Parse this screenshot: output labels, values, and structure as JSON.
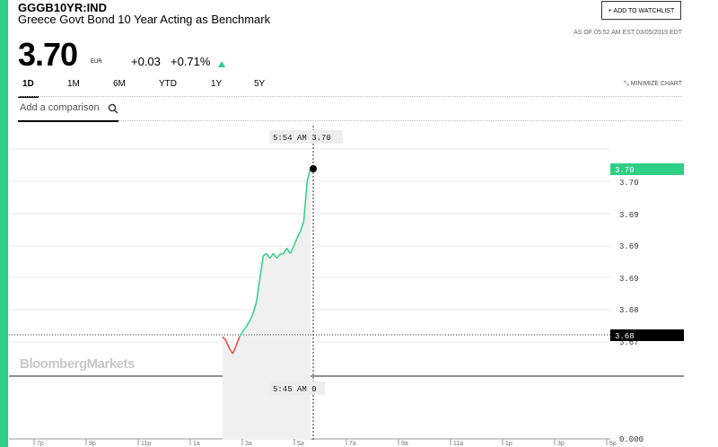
{
  "header": {
    "ticker": "GGGB10YR:IND",
    "name": "Greece Govt Bond 10 Year Acting as Benchmark",
    "watchlist_label": "+ ADD TO WATCHLIST",
    "as_of": "AS OF 05:52 AM EST 03/05/2019 EDT"
  },
  "quote": {
    "price": "3.70",
    "currency": "EUR",
    "change": "+0.03",
    "change_pct": "+0.71%",
    "direction": "up",
    "up_color": "#2fcf85"
  },
  "tabs": [
    "1D",
    "1M",
    "6M",
    "YTD",
    "1Y",
    "5Y"
  ],
  "active_tab": "1D",
  "minimize_label": "MINIMIZE CHART",
  "comparison": {
    "placeholder": "Add a comparison"
  },
  "watermark": "BloombergMarkets",
  "chart_data": {
    "type": "line",
    "title": "",
    "y_ticks": [
      "3.70",
      "3.69",
      "3.69",
      "3.69",
      "3.68",
      "3.67"
    ],
    "x_ticks": [
      "7p",
      "9p",
      "11p",
      "1a",
      "3a",
      "5a",
      "7a",
      "9a",
      "11a",
      "1p",
      "3p",
      "5p"
    ],
    "last_value_label": "3.70",
    "reference_label": "3.68",
    "volume_axis_label": "0.000",
    "crosshair_price_label": "5:54 AM 3.70",
    "crosshair_time_label": "5:45 AM 0",
    "series": [
      {
        "values": [
          3.675,
          3.6745,
          3.6735,
          3.6728,
          3.6738,
          3.675,
          3.6757,
          3.6763,
          3.677,
          3.678,
          3.6795,
          3.6825,
          3.6855,
          3.6858,
          3.6852,
          3.6858,
          3.6852,
          3.6857,
          3.6858,
          3.6865,
          3.6858,
          3.6867,
          3.6878,
          3.6887,
          3.69,
          3.6952,
          3.6968
        ]
      }
    ],
    "colors": {
      "up": "#2fcf85",
      "down": "#e8463c",
      "fill": "#f0f0f0"
    }
  }
}
